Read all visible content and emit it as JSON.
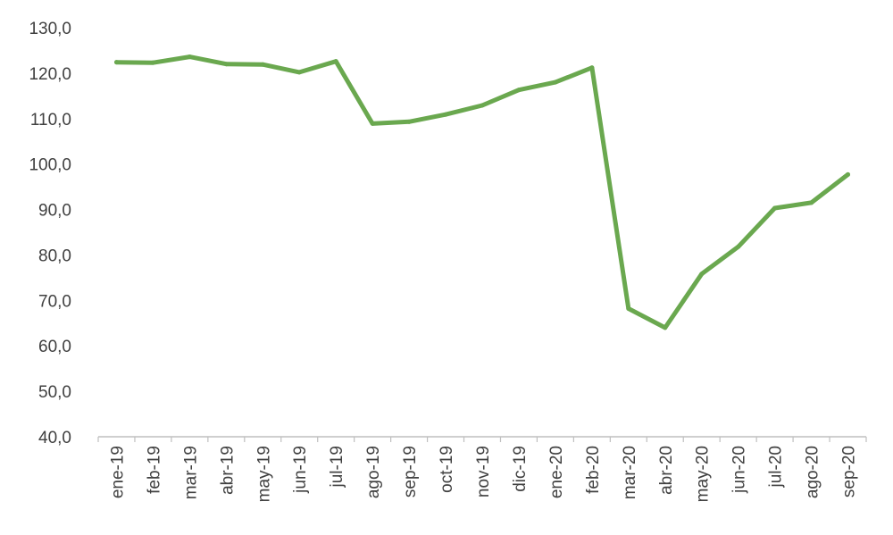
{
  "chart_data": {
    "type": "line",
    "title": "",
    "xlabel": "",
    "ylabel": "",
    "categories": [
      "ene-19",
      "feb-19",
      "mar-19",
      "abr-19",
      "may-19",
      "jun-19",
      "jul-19",
      "ago-19",
      "sep-19",
      "oct-19",
      "nov-19",
      "dic-19",
      "ene-20",
      "feb-20",
      "mar-20",
      "abr-20",
      "may-20",
      "jun-20",
      "jul-20",
      "ago-20",
      "sep-20"
    ],
    "series": [
      {
        "values": [
          122.4,
          122.3,
          123.6,
          122.0,
          121.9,
          120.2,
          122.6,
          108.9,
          109.3,
          110.9,
          112.9,
          116.3,
          118.0,
          121.2,
          68.2,
          64.0,
          75.8,
          81.8,
          90.3,
          91.5,
          97.7
        ],
        "color": "#6aa84f"
      }
    ],
    "ylim": [
      40,
      130
    ],
    "yticks": [
      "40,0",
      "50,0",
      "60,0",
      "70,0",
      "80,0",
      "90,0",
      "100,0",
      "110,0",
      "120,0",
      "130,0"
    ],
    "grid": false,
    "legend": "none"
  }
}
